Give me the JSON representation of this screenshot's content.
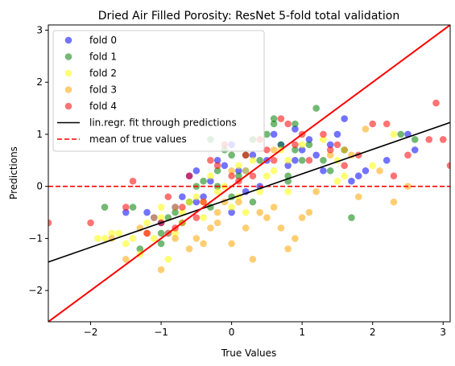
{
  "chart_data": {
    "type": "scatter",
    "title": "Dried Air Filled Porosity: ResNet 5-fold total validation",
    "xlabel": "True Values",
    "ylabel": "Predictions",
    "xlim": [
      -2.6,
      3.1
    ],
    "ylim": [
      -2.6,
      3.1
    ],
    "xticks": [
      -2,
      -1,
      0,
      1,
      2,
      3
    ],
    "yticks": [
      -2,
      -1,
      0,
      1,
      2,
      3
    ],
    "grid": false,
    "legend_position": "top-left",
    "colors": {
      "fold0": "#0000ff",
      "fold1": "#008000",
      "fold2": "#ffff00",
      "fold3": "#ffa500",
      "fold4": "#ff0000",
      "fit": "#000000",
      "mean": "#ff0000",
      "identity": "#ff0000"
    },
    "series": [
      {
        "name": "fold 0",
        "color": "#0000ff",
        "points": [
          [
            -1.2,
            -0.5
          ],
          [
            -1.1,
            -0.6
          ],
          [
            -1.0,
            -0.7
          ],
          [
            -0.9,
            -0.9
          ],
          [
            -0.8,
            -0.4
          ],
          [
            -0.6,
            0.2
          ],
          [
            -0.5,
            0.3
          ],
          [
            -0.4,
            -0.2
          ],
          [
            -0.3,
            0.1
          ],
          [
            -0.2,
            0.5
          ],
          [
            -0.1,
            0.4
          ],
          [
            0.0,
            0.8
          ],
          [
            0.1,
            0.3
          ],
          [
            0.2,
            -0.1
          ],
          [
            0.3,
            0.6
          ],
          [
            0.4,
            0.0
          ],
          [
            0.5,
            0.5
          ],
          [
            0.6,
            1.0
          ],
          [
            0.7,
            0.8
          ],
          [
            0.8,
            0.4
          ],
          [
            0.9,
            1.1
          ],
          [
            1.0,
            0.7
          ],
          [
            1.1,
            0.9
          ],
          [
            1.2,
            0.6
          ],
          [
            1.4,
            0.8
          ],
          [
            1.5,
            1.0
          ],
          [
            1.6,
            1.3
          ],
          [
            1.7,
            0.1
          ],
          [
            2.2,
            0.5
          ],
          [
            2.5,
            1.0
          ],
          [
            2.6,
            0.7
          ],
          [
            -1.5,
            -0.5
          ],
          [
            -0.7,
            -0.2
          ],
          [
            0.0,
            -0.5
          ],
          [
            0.2,
            0.3
          ],
          [
            1.3,
            0.3
          ],
          [
            1.8,
            0.2
          ],
          [
            -0.5,
            -0.3
          ],
          [
            0.9,
            0.5
          ],
          [
            1.9,
            0.3
          ]
        ]
      },
      {
        "name": "fold 1",
        "color": "#008000",
        "points": [
          [
            -1.4,
            -0.4
          ],
          [
            -1.3,
            -1.2
          ],
          [
            -1.0,
            -0.9
          ],
          [
            -0.9,
            -0.6
          ],
          [
            -0.7,
            -0.7
          ],
          [
            -0.6,
            -0.3
          ],
          [
            -0.5,
            0.0
          ],
          [
            -0.4,
            0.1
          ],
          [
            -0.3,
            -0.4
          ],
          [
            -0.2,
            0.3
          ],
          [
            -0.1,
            0.7
          ],
          [
            0.0,
            -0.2
          ],
          [
            0.1,
            0.2
          ],
          [
            0.2,
            0.6
          ],
          [
            0.3,
            0.9
          ],
          [
            0.4,
            0.5
          ],
          [
            0.5,
            1.0
          ],
          [
            0.6,
            1.2
          ],
          [
            0.7,
            0.8
          ],
          [
            0.8,
            0.1
          ],
          [
            0.9,
            0.7
          ],
          [
            1.0,
            0.5
          ],
          [
            1.2,
            1.5
          ],
          [
            1.4,
            0.3
          ],
          [
            1.6,
            0.7
          ],
          [
            1.7,
            -0.6
          ],
          [
            2.4,
            1.0
          ],
          [
            2.6,
            0.9
          ],
          [
            -1.8,
            -0.4
          ],
          [
            0.3,
            -0.3
          ],
          [
            -0.8,
            -0.5
          ],
          [
            0.6,
            1.3
          ],
          [
            1.1,
            0.8
          ],
          [
            -0.2,
            0.0
          ],
          [
            0.0,
            0.6
          ],
          [
            0.8,
            0.2
          ],
          [
            -1.0,
            -1.1
          ],
          [
            1.3,
            0.5
          ],
          [
            -0.3,
            0.9
          ],
          [
            0.9,
            1.2
          ]
        ]
      },
      {
        "name": "fold 2",
        "color": "#ffff00",
        "points": [
          [
            -1.9,
            -1.0
          ],
          [
            -1.8,
            -1.0
          ],
          [
            -1.6,
            -0.9
          ],
          [
            -1.5,
            -1.1
          ],
          [
            -1.4,
            -1.0
          ],
          [
            -1.3,
            -1.3
          ],
          [
            -1.2,
            -0.7
          ],
          [
            -1.1,
            -1.0
          ],
          [
            -1.0,
            -0.6
          ],
          [
            -0.9,
            -1.4
          ],
          [
            -0.8,
            -0.9
          ],
          [
            -0.7,
            -0.5
          ],
          [
            -0.6,
            -0.3
          ],
          [
            -0.5,
            -0.2
          ],
          [
            -0.4,
            -0.6
          ],
          [
            -0.3,
            0.2
          ],
          [
            -0.2,
            -0.1
          ],
          [
            -0.1,
            0.0
          ],
          [
            0.0,
            -0.4
          ],
          [
            0.1,
            -0.2
          ],
          [
            0.2,
            0.3
          ],
          [
            0.3,
            0.5
          ],
          [
            0.4,
            -0.1
          ],
          [
            0.5,
            0.2
          ],
          [
            0.6,
            0.3
          ],
          [
            0.7,
            0.7
          ],
          [
            0.8,
            0.5
          ],
          [
            1.0,
            0.8
          ],
          [
            1.3,
            0.9
          ],
          [
            1.5,
            0.5
          ],
          [
            1.6,
            0.2
          ],
          [
            2.0,
            0.4
          ],
          [
            2.3,
            1.0
          ],
          [
            -1.7,
            -0.9
          ],
          [
            -1.0,
            -0.4
          ],
          [
            -0.4,
            -0.3
          ],
          [
            0.2,
            -0.5
          ],
          [
            0.8,
            -0.1
          ],
          [
            1.5,
            0.1
          ],
          [
            0.1,
            0.4
          ]
        ]
      },
      {
        "name": "fold 3",
        "color": "#ffa500",
        "points": [
          [
            -1.7,
            -1.0
          ],
          [
            -1.5,
            -1.4
          ],
          [
            -1.3,
            -0.8
          ],
          [
            -1.2,
            -0.9
          ],
          [
            -1.1,
            -0.6
          ],
          [
            -1.0,
            -1.6
          ],
          [
            -0.9,
            -0.9
          ],
          [
            -0.8,
            -1.0
          ],
          [
            -0.7,
            -0.7
          ],
          [
            -0.6,
            -1.2
          ],
          [
            -0.5,
            -1.0
          ],
          [
            -0.4,
            -1.1
          ],
          [
            -0.3,
            -0.8
          ],
          [
            -0.2,
            -0.5
          ],
          [
            -0.1,
            -0.3
          ],
          [
            0.0,
            -1.1
          ],
          [
            0.1,
            -0.3
          ],
          [
            0.2,
            -0.8
          ],
          [
            0.3,
            -1.4
          ],
          [
            0.4,
            -0.5
          ],
          [
            0.5,
            -0.6
          ],
          [
            0.6,
            -0.4
          ],
          [
            0.7,
            -0.8
          ],
          [
            0.8,
            -1.2
          ],
          [
            0.9,
            -1.0
          ],
          [
            1.0,
            -0.6
          ],
          [
            1.1,
            -0.5
          ],
          [
            1.2,
            -0.1
          ],
          [
            1.4,
            0.6
          ],
          [
            1.6,
            0.7
          ],
          [
            1.8,
            -0.2
          ],
          [
            2.1,
            0.3
          ],
          [
            2.3,
            -0.3
          ],
          [
            2.5,
            0.0
          ],
          [
            -0.8,
            -0.4
          ],
          [
            0.0,
            0.3
          ],
          [
            0.6,
            0.7
          ],
          [
            1.7,
            0.6
          ],
          [
            1.9,
            1.1
          ],
          [
            -0.2,
            -0.7
          ]
        ]
      },
      {
        "name": "fold 4",
        "color": "#ff0000",
        "points": [
          [
            -2.6,
            -0.7
          ],
          [
            -2.0,
            -0.7
          ],
          [
            -1.5,
            -0.4
          ],
          [
            -1.4,
            0.1
          ],
          [
            -1.2,
            -0.9
          ],
          [
            -1.0,
            -0.7
          ],
          [
            -0.9,
            -0.2
          ],
          [
            -0.8,
            -0.8
          ],
          [
            -0.7,
            -0.4
          ],
          [
            -0.6,
            0.2
          ],
          [
            -0.5,
            -0.6
          ],
          [
            -0.4,
            -0.3
          ],
          [
            -0.3,
            0.5
          ],
          [
            -0.2,
            0.4
          ],
          [
            -0.1,
            0.8
          ],
          [
            0.0,
            0.2
          ],
          [
            0.1,
            0.1
          ],
          [
            0.2,
            0.6
          ],
          [
            0.3,
            0.2
          ],
          [
            0.4,
            0.9
          ],
          [
            0.5,
            0.7
          ],
          [
            0.6,
            0.5
          ],
          [
            0.7,
            1.3
          ],
          [
            0.8,
            1.2
          ],
          [
            0.9,
            0.8
          ],
          [
            1.0,
            1.0
          ],
          [
            1.1,
            0.5
          ],
          [
            1.3,
            1.0
          ],
          [
            1.4,
            0.7
          ],
          [
            1.5,
            0.8
          ],
          [
            1.6,
            0.4
          ],
          [
            1.8,
            0.6
          ],
          [
            2.0,
            1.2
          ],
          [
            2.2,
            1.2
          ],
          [
            2.3,
            0.2
          ],
          [
            2.5,
            0.6
          ],
          [
            2.8,
            0.9
          ],
          [
            2.9,
            1.6
          ],
          [
            3.0,
            0.9
          ],
          [
            3.1,
            0.4
          ]
        ]
      }
    ],
    "fit_line": {
      "name": "lin.regr. fit through predictions",
      "slope": 0.47,
      "intercept": -0.23
    },
    "mean_line": {
      "name": "mean of true values",
      "y": 0
    },
    "identity_line": {
      "slope": 1,
      "intercept": 0
    }
  }
}
